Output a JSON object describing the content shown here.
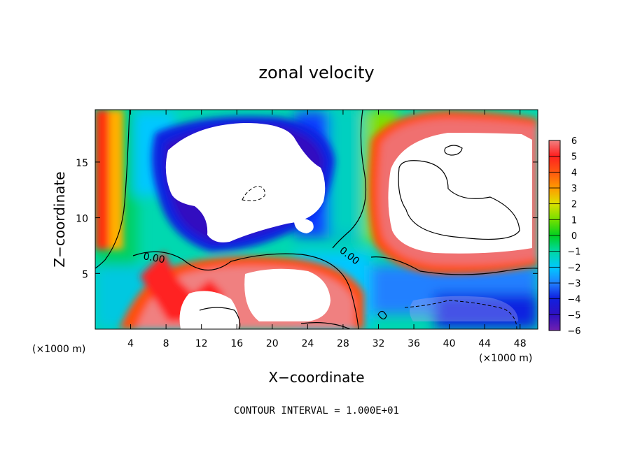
{
  "chart_data": {
    "type": "heatmap",
    "title": "zonal velocity",
    "xlabel": "X−coordinate",
    "ylabel": "Z−coordinate",
    "x_unit_label": "(×1000 m)",
    "x_unit_label_right": "(×1000 m)",
    "x_ticks": [
      "4",
      "8",
      "12",
      "16",
      "20",
      "24",
      "28",
      "32",
      "36",
      "40",
      "44",
      "48"
    ],
    "x_tick_values": [
      4,
      8,
      12,
      16,
      20,
      24,
      28,
      32,
      36,
      40,
      44,
      48
    ],
    "y_ticks": [
      "5",
      "10",
      "15"
    ],
    "y_tick_values": [
      5,
      10,
      15
    ],
    "xlim": [
      0,
      50
    ],
    "ylim": [
      0,
      19.7
    ],
    "colorbar": {
      "labels": [
        "6",
        "5",
        "4",
        "3",
        "2",
        "1",
        "0",
        "−1",
        "−2",
        "−3",
        "−4",
        "−5",
        "−6"
      ],
      "range": [
        -6,
        6
      ],
      "colors": [
        "#f08080",
        "#ff2020",
        "#ff5a10",
        "#ff9a00",
        "#e0e000",
        "#70e000",
        "#00d020",
        "#00d8a0",
        "#00c8ff",
        "#2080ff",
        "#1020e0",
        "#3010c0",
        "#7020b0"
      ]
    },
    "contour_labels": [
      {
        "text": "0.00",
        "x": 7.0,
        "y": 6.6
      },
      {
        "text": "0.00",
        "x": 29.0,
        "y": 6.6
      }
    ],
    "footnote": "CONTOUR INTERVAL = 1.000E+01",
    "saturated_regions_white": true
  }
}
